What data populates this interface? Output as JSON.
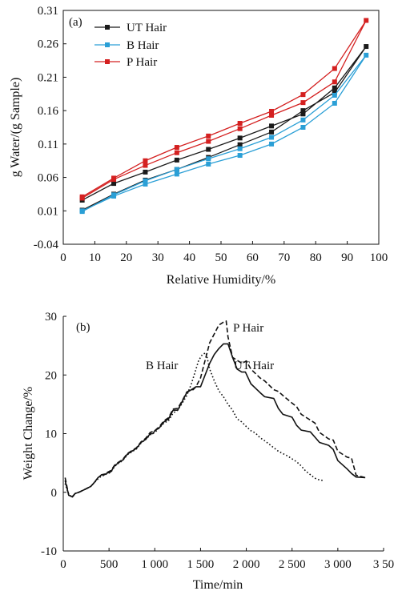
{
  "chart_data": [
    {
      "type": "line",
      "panel_label": "(a)",
      "xlabel": "Relative Humidity/%",
      "ylabel": "g Water/(g Sample)",
      "xlim": [
        0,
        100
      ],
      "ylim": [
        -0.04,
        0.31
      ],
      "xticks": [
        "0",
        "10",
        "20",
        "30",
        "40",
        "50",
        "60",
        "70",
        "80",
        "90",
        "100"
      ],
      "yticks": [
        "-0.04",
        "0.01",
        "0.06",
        "0.11",
        "0.16",
        "0.21",
        "0.26",
        "0.31"
      ],
      "legend_position": "top-left",
      "grid": false,
      "series": [
        {
          "name": "UT Hair",
          "color": "#1a1a1a",
          "x": [
            6,
            16,
            26,
            36,
            46,
            56,
            66,
            76,
            86,
            96,
            86,
            76,
            66,
            56,
            46,
            36,
            26,
            16,
            6
          ],
          "y": [
            0.026,
            0.051,
            0.068,
            0.086,
            0.102,
            0.119,
            0.137,
            0.155,
            0.194,
            0.256,
            0.187,
            0.16,
            0.128,
            0.109,
            0.09,
            0.072,
            0.056,
            0.035,
            0.011
          ]
        },
        {
          "name": "B Hair",
          "color": "#2a9fd6",
          "x": [
            6,
            16,
            26,
            36,
            46,
            56,
            66,
            76,
            86,
            96,
            86,
            76,
            66,
            56,
            46,
            36,
            26,
            16,
            6
          ],
          "y": [
            0.01,
            0.032,
            0.05,
            0.065,
            0.08,
            0.093,
            0.11,
            0.135,
            0.171,
            0.243,
            0.183,
            0.146,
            0.12,
            0.103,
            0.088,
            0.072,
            0.055,
            0.034,
            0.009
          ]
        },
        {
          "name": "P Hair",
          "color": "#d42020",
          "x": [
            6,
            16,
            26,
            36,
            46,
            56,
            66,
            76,
            86,
            96,
            86,
            76,
            66,
            56,
            46,
            36,
            26,
            16,
            6
          ],
          "y": [
            0.031,
            0.059,
            0.085,
            0.105,
            0.122,
            0.141,
            0.159,
            0.184,
            0.223,
            0.295,
            0.203,
            0.172,
            0.153,
            0.133,
            0.114,
            0.097,
            0.078,
            0.057,
            0.029
          ]
        }
      ]
    },
    {
      "type": "line",
      "panel_label": "(b)",
      "xlabel": "Time/min",
      "ylabel": "Weight Change/%",
      "xlim": [
        0,
        3500
      ],
      "ylim": [
        -10,
        30
      ],
      "xticks": [
        "0",
        "500",
        "1 000",
        "1 500",
        "2 000",
        "2 500",
        "3 000",
        "3 50"
      ],
      "yticks": [
        "-10",
        "0",
        "10",
        "20",
        "30"
      ],
      "grid": false,
      "series": [
        {
          "name": "UT Hair",
          "style": "solid",
          "x": [
            20,
            60,
            100,
            130,
            170,
            210,
            250,
            300,
            330,
            380,
            420,
            450,
            470,
            520,
            560,
            600,
            650,
            700,
            750,
            800,
            850,
            900,
            950,
            980,
            1000,
            1050,
            1100,
            1150,
            1200,
            1250,
            1300,
            1350,
            1400,
            1420,
            1450,
            1500,
            1550,
            1600,
            1650,
            1700,
            1750,
            1800,
            1850,
            1900,
            1950,
            1990,
            2050,
            2150,
            2200,
            2300,
            2350,
            2400,
            2500,
            2550,
            2600,
            2700,
            2750,
            2800,
            2900,
            2950,
            3000,
            3100,
            3150,
            3200,
            3300
          ],
          "y": [
            2,
            -0.5,
            -0.8,
            -0.2,
            0,
            0.3,
            0.6,
            1,
            1.5,
            2.5,
            3,
            3,
            3.2,
            3.5,
            4.5,
            5,
            5.5,
            6.5,
            7,
            7.5,
            8.5,
            9,
            10,
            10,
            10.5,
            11,
            12,
            12.5,
            14,
            14,
            15.5,
            17,
            17.5,
            17.5,
            18,
            18,
            20,
            22,
            23.5,
            24.5,
            25.3,
            25.3,
            23,
            21,
            20.5,
            20.5,
            18.5,
            17,
            16.3,
            16,
            14.3,
            13.3,
            12.8,
            11.4,
            10.6,
            10.3,
            9.4,
            8.5,
            8,
            7.3,
            5.4,
            4,
            3.2,
            2.6,
            2.5
          ]
        },
        {
          "name": "P Hair",
          "style": "dashed",
          "x": [
            20,
            60,
            100,
            130,
            170,
            210,
            250,
            300,
            330,
            380,
            420,
            450,
            470,
            520,
            560,
            600,
            650,
            700,
            750,
            800,
            850,
            900,
            950,
            1000,
            1050,
            1100,
            1150,
            1200,
            1250,
            1300,
            1350,
            1400,
            1450,
            1500,
            1550,
            1600,
            1650,
            1700,
            1750,
            1780,
            1800,
            1850,
            1900,
            1950,
            1980,
            2000,
            2050,
            2150,
            2200,
            2300,
            2350,
            2400,
            2500,
            2550,
            2600,
            2700,
            2750,
            2800,
            2900,
            2950,
            3000,
            3100,
            3150,
            3200,
            3300
          ],
          "y": [
            2.5,
            -0.5,
            -0.7,
            -0.2,
            0,
            0.3,
            0.6,
            1,
            1.5,
            2.5,
            3,
            3.1,
            3.3,
            3.7,
            4.6,
            5.1,
            5.6,
            6.6,
            7.1,
            7.6,
            8.6,
            9.2,
            10.2,
            10.5,
            11.2,
            12.2,
            12.7,
            14.2,
            14.3,
            15.6,
            17.1,
            17.5,
            18,
            19.5,
            22.5,
            25.5,
            27,
            28.5,
            29,
            29.2,
            26.5,
            23,
            22.5,
            22,
            22.2,
            22.4,
            21,
            19.5,
            19,
            17.5,
            17.2,
            16.5,
            15.2,
            14.6,
            13.3,
            12.3,
            11.8,
            10.2,
            9.1,
            8.9,
            7,
            6,
            5.8,
            2.9,
            2.5
          ]
        },
        {
          "name": "B Hair",
          "style": "dotted",
          "x": [
            20,
            60,
            100,
            130,
            170,
            210,
            250,
            300,
            330,
            380,
            420,
            450,
            470,
            520,
            560,
            600,
            650,
            700,
            750,
            800,
            850,
            900,
            950,
            1000,
            1050,
            1100,
            1150,
            1200,
            1250,
            1300,
            1350,
            1400,
            1440,
            1480,
            1520,
            1560,
            1600,
            1650,
            1700,
            1750,
            1800,
            1850,
            1900,
            1950,
            2000,
            2050,
            2100,
            2150,
            2200,
            2250,
            2300,
            2350,
            2400,
            2450,
            2500,
            2550,
            2600,
            2650,
            2700,
            2750,
            2800,
            2850
          ],
          "y": [
            1.5,
            -0.4,
            -0.8,
            -0.2,
            0,
            0.3,
            0.6,
            1,
            1.5,
            2.3,
            2.8,
            2.9,
            3.1,
            3.4,
            4.4,
            4.9,
            5.4,
            6.4,
            6.9,
            7.4,
            8.4,
            9,
            9.8,
            10.2,
            11,
            11.8,
            12.2,
            13.5,
            14,
            15.2,
            16.5,
            18.5,
            20.5,
            22.5,
            23.5,
            23.8,
            21,
            19,
            17.3,
            16.3,
            15,
            14,
            12.5,
            12,
            11.2,
            10.5,
            10.1,
            9.3,
            8.8,
            8.2,
            7.6,
            7,
            6.6,
            6.2,
            5.7,
            5.2,
            4.5,
            3.6,
            3,
            2.4,
            2.1,
            2
          ]
        }
      ],
      "annotations": [
        "P Hair",
        "UT Hair",
        "B Hair"
      ]
    }
  ]
}
